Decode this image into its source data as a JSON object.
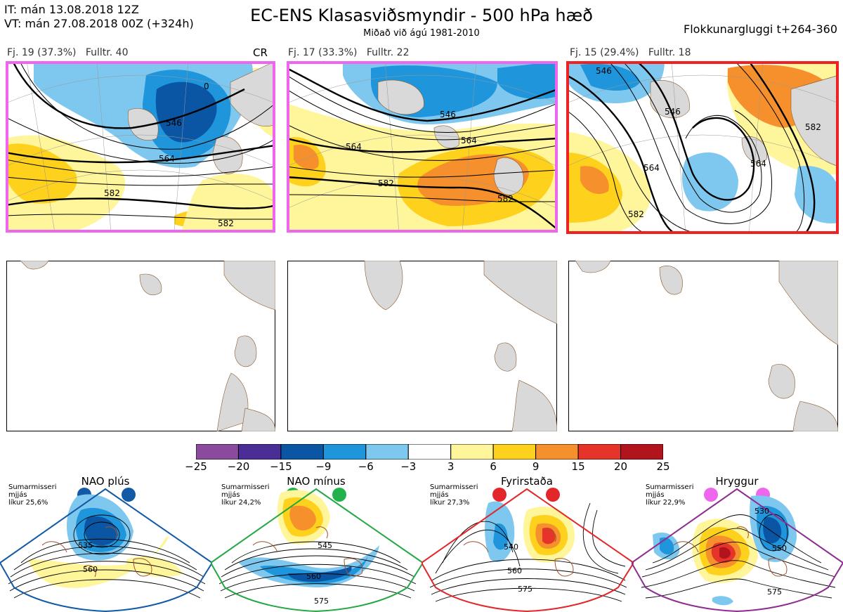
{
  "header": {
    "it_line": "IT: mán 13.08.2018 12Z",
    "vt_line": "VT: mán 27.08.2018 00Z  (+324h)",
    "title": "EC-ENS Klasasviðsmyndir - 500 hPa hæð",
    "subtitle": "Miðað við ágú 1981-2010",
    "window": "Flokkunargluggi t+264-360"
  },
  "clusters": [
    {
      "label": "Fj. 19 (37.3%)   Fulltr. 40",
      "border_color": "#ee66ee",
      "tag": "CR",
      "contours": [
        "546",
        "564",
        "582",
        "582",
        "0"
      ]
    },
    {
      "label": "Fj. 17 (33.3%)   Fulltr. 22",
      "border_color": "#ee66ee",
      "tag": "",
      "contours": [
        "546",
        "564",
        "564",
        "582",
        "582"
      ]
    },
    {
      "label": "Fj. 15 (29.4%)   Fulltr. 18",
      "border_color": "#ee2222",
      "tag": "",
      "contours": [
        "546",
        "546",
        "564",
        "564",
        "582",
        "582"
      ]
    }
  ],
  "colorbar": {
    "ticks": [
      "−25",
      "−20",
      "−15",
      "−9",
      "−6",
      "−3",
      "3",
      "6",
      "9",
      "15",
      "20",
      "25"
    ],
    "colors": [
      "#8b4b9c",
      "#4a2e96",
      "#0b56a4",
      "#1f95dc",
      "#7ec8ef",
      "#ffffff",
      "#fff59a",
      "#fdd11c",
      "#f6902c",
      "#e7342b",
      "#b1141c"
    ]
  },
  "regimes": [
    {
      "title": "NAO plús",
      "note": [
        "Sumarmisseri",
        "mjjás",
        "líkur 25,6%"
      ],
      "frame_color": "#1259a6",
      "dot_color": "#1259a6",
      "contours": [
        "535",
        "560"
      ]
    },
    {
      "title": "NAO mínus",
      "note": [
        "Sumarmisseri",
        "mjjás",
        "líkur 24,2%"
      ],
      "frame_color": "#23a843",
      "dot_color": "#23b14c",
      "contours": [
        "545",
        "560",
        "575"
      ]
    },
    {
      "title": "Fyrirstaða",
      "note": [
        "Sumarmisseri",
        "mjjás",
        "líkur 27,3%"
      ],
      "frame_color": "#e3262a",
      "dot_color": "#e3262a",
      "contours": [
        "540",
        "560",
        "575"
      ]
    },
    {
      "title": "Hryggur",
      "note": [
        "Sumarmisseri",
        "mjjás",
        "líkur 22,9%"
      ],
      "frame_color": "#8e2d8f",
      "dot_color": "#ee66ee",
      "contours": [
        "530",
        "550",
        "575"
      ]
    }
  ]
}
